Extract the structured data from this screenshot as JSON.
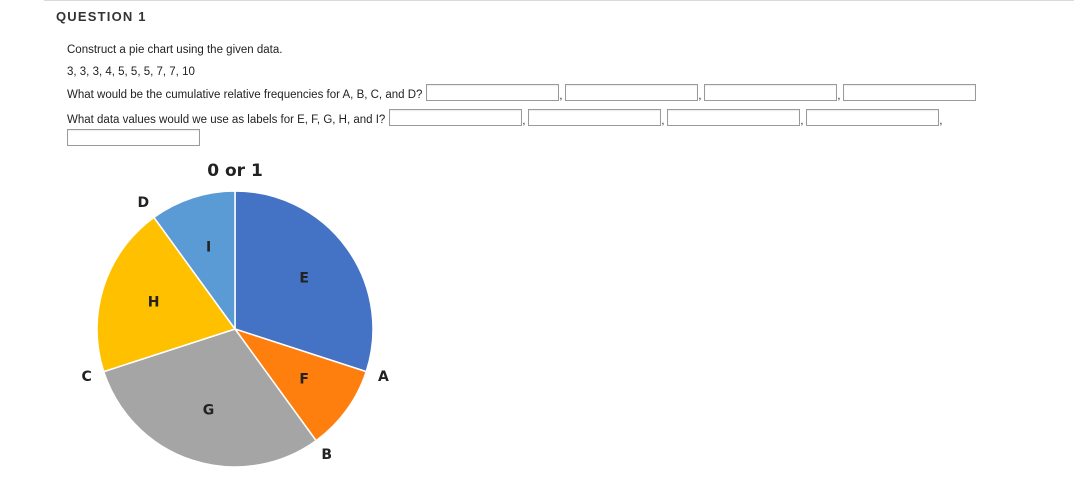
{
  "question": {
    "title": "QUESTION 1",
    "instruction": "Construct a pie chart using the given data.",
    "data_values": "3, 3, 3, 4, 5, 5, 5, 7, 7, 10",
    "prompt_cumulative": "What would be the cumulative relative frequencies for A, B, C, and D?",
    "prompt_labels": "What data values would we use as labels for E, F, G, H, and I?",
    "separator": ","
  },
  "answers": {
    "cumulative": [
      "",
      "",
      "",
      ""
    ],
    "labels": [
      "",
      "",
      "",
      "",
      ""
    ]
  },
  "chart_data": {
    "type": "pie",
    "title": "0 or 1",
    "slices": [
      {
        "label": "E",
        "value": 0.3,
        "color": "#4472C4"
      },
      {
        "label": "F",
        "value": 0.1,
        "color": "#FF7F0E"
      },
      {
        "label": "G",
        "value": 0.3,
        "color": "#A5A5A5"
      },
      {
        "label": "H",
        "value": 0.2,
        "color": "#FFC000"
      },
      {
        "label": "I",
        "value": 0.1,
        "color": "#5B9BD5"
      }
    ],
    "boundary_labels": [
      "A",
      "B",
      "C",
      "D"
    ]
  }
}
